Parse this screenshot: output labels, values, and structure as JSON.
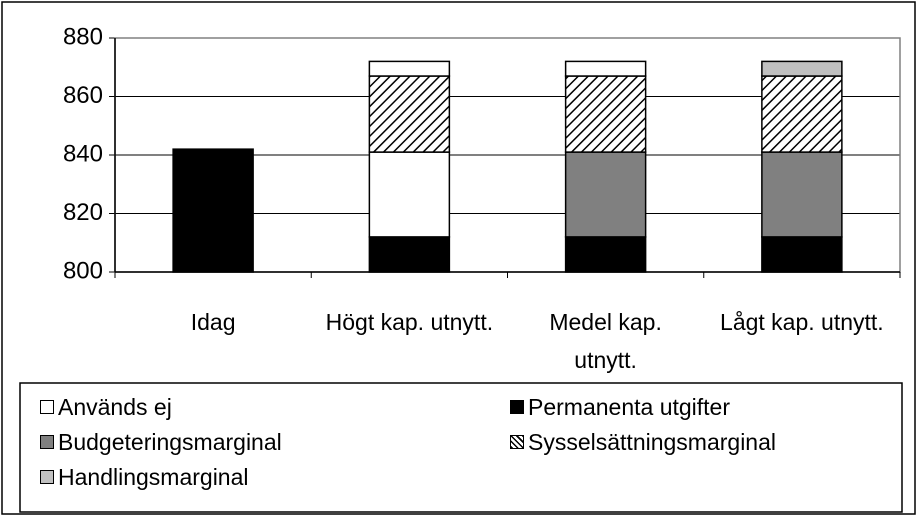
{
  "chart_data": {
    "type": "stacked-bar",
    "categories": [
      "Idag",
      "Högt kap. utnytt.",
      "Medel kap. utnytt.",
      "Lågt kap. utnytt."
    ],
    "ylim": [
      800,
      880
    ],
    "yticks": [
      800,
      820,
      840,
      860,
      880
    ],
    "legend": [
      {
        "name": "Används ej",
        "color": "#ffffff"
      },
      {
        "name": "Permanenta utgifter",
        "color": "#000000"
      },
      {
        "name": "Budgeteringsmarginal",
        "color": "#808080"
      },
      {
        "name": "Sysselsättningsmarginal",
        "color": "#000000",
        "pattern": "hatch"
      },
      {
        "name": "Handlingsmarginal",
        "color": "#c0c0c0"
      }
    ],
    "stacks": [
      [
        {
          "series": "Permanenta utgifter",
          "value": 842
        }
      ],
      [
        {
          "series": "Permanenta utgifter",
          "value": 812
        },
        {
          "series": "Används ej",
          "value": 29
        },
        {
          "series": "Sysselsättningsmarginal",
          "value": 26
        },
        {
          "series": "Används ej",
          "value": 5
        }
      ],
      [
        {
          "series": "Permanenta utgifter",
          "value": 812
        },
        {
          "series": "Budgeteringsmarginal",
          "value": 29
        },
        {
          "series": "Sysselsättningsmarginal",
          "value": 26
        },
        {
          "series": "Används ej",
          "value": 5
        }
      ],
      [
        {
          "series": "Permanenta utgifter",
          "value": 812
        },
        {
          "series": "Budgeteringsmarginal",
          "value": 29
        },
        {
          "series": "Sysselsättningsmarginal",
          "value": 26
        },
        {
          "series": "Handlingsmarginal",
          "value": 5
        }
      ]
    ]
  }
}
